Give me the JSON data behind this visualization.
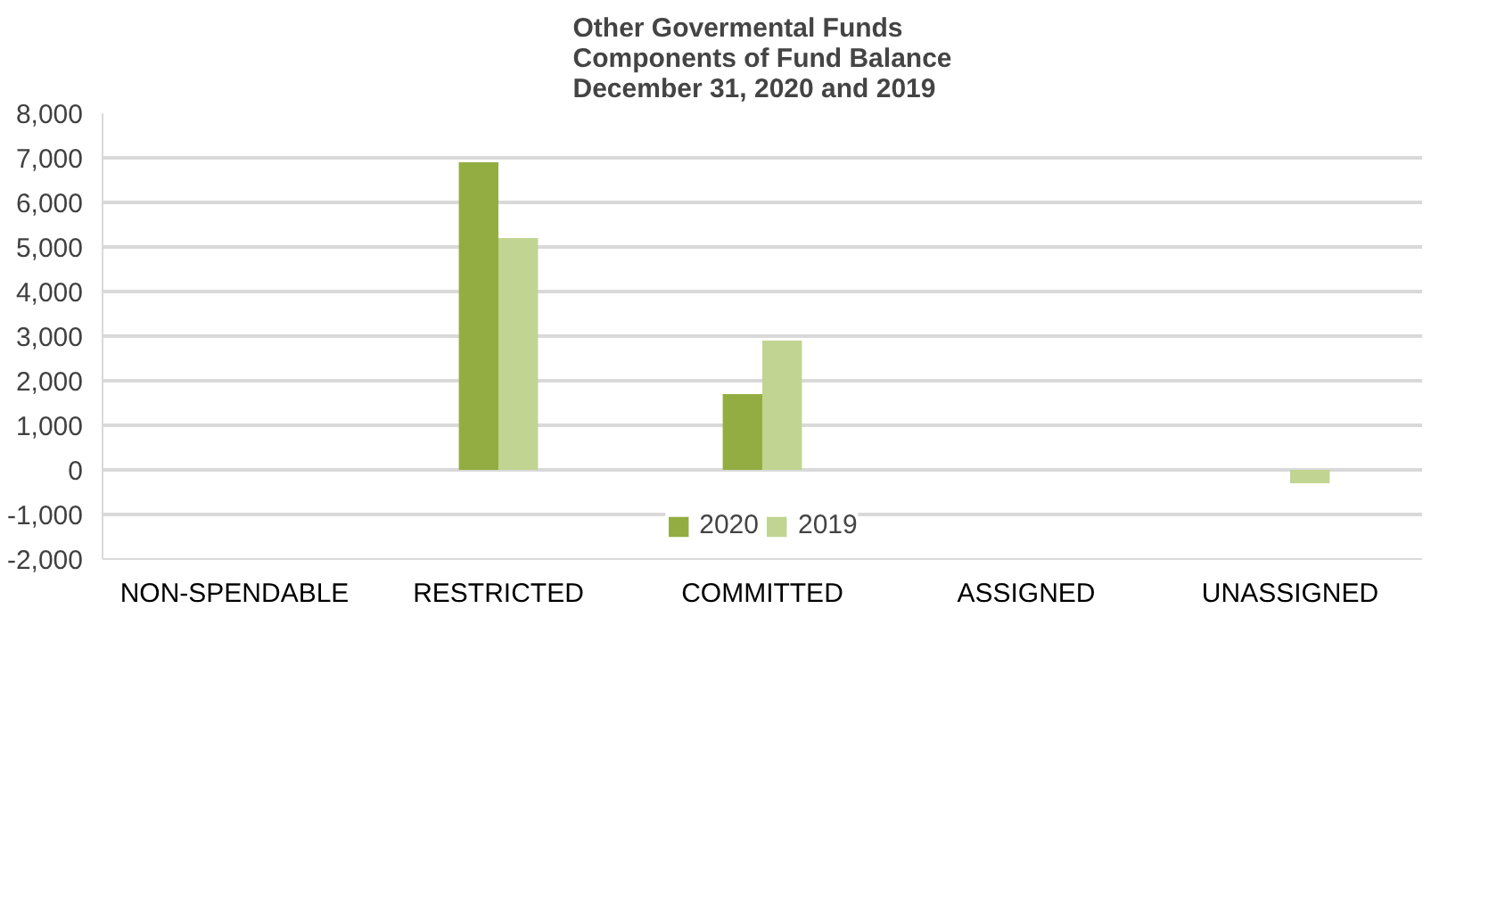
{
  "chart_data": {
    "type": "bar",
    "title": "Other Govermental Funds\nComponents of Fund Balance\nDecember 31, 2020 and 2019",
    "categories": [
      "NON-SPENDABLE",
      "RESTRICTED",
      "COMMITTED",
      "ASSIGNED",
      "UNASSIGNED"
    ],
    "series": [
      {
        "name": "2020",
        "color": "#94ad42",
        "values": [
          0,
          6900,
          1700,
          0,
          0
        ]
      },
      {
        "name": "2019",
        "color": "#c1d492",
        "values": [
          0,
          5200,
          2900,
          0,
          -300
        ]
      }
    ],
    "ylim": [
      -2000,
      8000
    ],
    "yticks": [
      {
        "value": -2000,
        "label": "-2,000"
      },
      {
        "value": -1000,
        "label": "-1,000"
      },
      0,
      {
        "value": 1000,
        "label": "1,000"
      },
      {
        "value": 2000,
        "label": "2,000"
      },
      {
        "value": 3000,
        "label": "3,000"
      },
      {
        "value": 4000,
        "label": "4,000"
      },
      {
        "value": 5000,
        "label": "5,000"
      },
      {
        "value": 6000,
        "label": "6,000"
      },
      {
        "value": 7000,
        "label": "7,000"
      },
      {
        "value": 8000,
        "label": "8,000"
      }
    ],
    "grid": "y",
    "legend": "bottom"
  }
}
